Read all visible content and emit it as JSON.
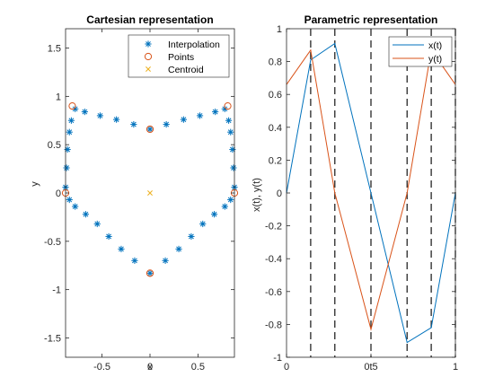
{
  "colors": {
    "blue": "#0072BD",
    "orange": "#D95319",
    "yellow": "#EDB120",
    "axis": "#262626",
    "dash": "#262626"
  },
  "chart_data": [
    {
      "type": "scatter",
      "title": "Cartesian representation",
      "xlabel": "x",
      "ylabel": "y",
      "xlim": [
        -0.88,
        0.88
      ],
      "ylim": [
        -1.7,
        1.7
      ],
      "xticks": [
        -0.5,
        0,
        0.5
      ],
      "yticks": [
        -1.5,
        -1,
        -0.5,
        0,
        0.5,
        1,
        1.5
      ],
      "grid": false,
      "legend_position": "top-right",
      "legend": [
        "Interpolation",
        "Points",
        "Centroid"
      ],
      "series": [
        {
          "name": "Interpolation",
          "marker": "asterisk",
          "color": "#0072BD",
          "points": [
            [
              0.0,
              0.66
            ],
            [
              -0.17,
              0.71
            ],
            [
              -0.35,
              0.76
            ],
            [
              -0.52,
              0.8
            ],
            [
              -0.68,
              0.84
            ],
            [
              -0.78,
              0.87
            ],
            [
              -0.82,
              0.75
            ],
            [
              -0.84,
              0.63
            ],
            [
              -0.86,
              0.45
            ],
            [
              -0.87,
              0.26
            ],
            [
              -0.88,
              0.06
            ],
            [
              -0.84,
              -0.07
            ],
            [
              -0.78,
              -0.14
            ],
            [
              -0.67,
              -0.22
            ],
            [
              -0.55,
              -0.32
            ],
            [
              -0.43,
              -0.45
            ],
            [
              -0.3,
              -0.58
            ],
            [
              -0.16,
              -0.7
            ],
            [
              0.0,
              -0.83
            ],
            [
              0.16,
              -0.7
            ],
            [
              0.3,
              -0.58
            ],
            [
              0.43,
              -0.45
            ],
            [
              0.55,
              -0.32
            ],
            [
              0.67,
              -0.22
            ],
            [
              0.78,
              -0.14
            ],
            [
              0.84,
              -0.07
            ],
            [
              0.88,
              0.06
            ],
            [
              0.87,
              0.26
            ],
            [
              0.86,
              0.45
            ],
            [
              0.84,
              0.63
            ],
            [
              0.82,
              0.75
            ],
            [
              0.78,
              0.87
            ],
            [
              0.68,
              0.84
            ],
            [
              0.52,
              0.8
            ],
            [
              0.35,
              0.76
            ],
            [
              0.17,
              0.71
            ]
          ]
        },
        {
          "name": "Points",
          "marker": "circle",
          "color": "#D95319",
          "points": [
            [
              0.0,
              0.66
            ],
            [
              -0.81,
              0.9
            ],
            [
              -0.88,
              0.0
            ],
            [
              0.0,
              -0.83
            ],
            [
              0.88,
              0.0
            ],
            [
              0.81,
              0.9
            ]
          ]
        },
        {
          "name": "Centroid",
          "marker": "x",
          "color": "#EDB120",
          "points": [
            [
              0.0,
              0.0
            ]
          ]
        }
      ]
    },
    {
      "type": "line",
      "title": "Parametric representation",
      "xlabel": "t",
      "ylabel": "x(t), y(t)",
      "xlim": [
        0,
        1
      ],
      "ylim": [
        -1,
        1
      ],
      "xticks": [
        0,
        0.5,
        1
      ],
      "yticks": [
        -1,
        -0.8,
        -0.6,
        -0.4,
        -0.2,
        0,
        0.2,
        0.4,
        0.6,
        0.8,
        1
      ],
      "grid": false,
      "legend_position": "top-right",
      "legend": [
        "x(t)",
        "y(t)"
      ],
      "vlines": [
        0.143,
        0.286,
        0.5,
        0.714,
        0.857,
        1.0
      ],
      "series": [
        {
          "name": "x(t)",
          "color": "#0072BD",
          "x": [
            0,
            0.143,
            0.286,
            0.5,
            0.714,
            0.857,
            1.0
          ],
          "y": [
            0.0,
            0.81,
            0.91,
            0.0,
            -0.91,
            -0.82,
            0.0
          ]
        },
        {
          "name": "y(t)",
          "color": "#D95319",
          "x": [
            0,
            0.143,
            0.286,
            0.5,
            0.714,
            0.857,
            1.0
          ],
          "y": [
            0.66,
            0.87,
            0.0,
            -0.83,
            0.0,
            0.87,
            0.66
          ]
        }
      ]
    }
  ]
}
